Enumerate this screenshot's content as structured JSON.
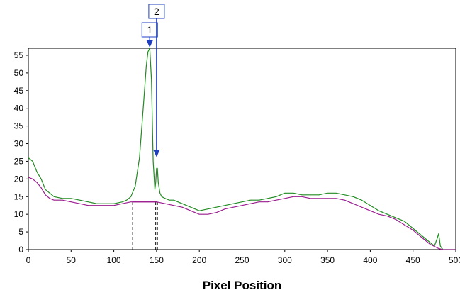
{
  "chart_data": {
    "type": "line",
    "title": "",
    "xlabel": "Pixel Position",
    "ylabel": "",
    "xlim": [
      0,
      500
    ],
    "ylim": [
      0,
      57
    ],
    "x_ticks": [
      0,
      50,
      100,
      150,
      200,
      250,
      300,
      350,
      400,
      450,
      500
    ],
    "y_ticks": [
      0,
      5,
      10,
      15,
      20,
      25,
      30,
      35,
      40,
      45,
      50,
      55
    ],
    "grid": false,
    "legend": "none",
    "series": [
      {
        "color": "#228B22",
        "x": [
          0,
          5,
          10,
          15,
          20,
          25,
          30,
          40,
          50,
          60,
          70,
          80,
          90,
          100,
          110,
          115,
          120,
          125,
          130,
          135,
          138,
          140,
          142,
          144,
          146,
          148,
          149,
          150,
          151,
          152,
          154,
          156,
          160,
          165,
          170,
          180,
          190,
          200,
          210,
          220,
          230,
          240,
          250,
          260,
          270,
          280,
          290,
          300,
          310,
          320,
          330,
          340,
          350,
          360,
          370,
          380,
          390,
          400,
          410,
          420,
          430,
          440,
          450,
          460,
          470,
          475,
          478,
          480,
          482,
          485,
          490,
          500
        ],
        "y": [
          26,
          25,
          22,
          20,
          17,
          16,
          15,
          14.5,
          14.5,
          14,
          13.5,
          13,
          13,
          13,
          13.5,
          14,
          15,
          18,
          26,
          42,
          52,
          56,
          57,
          48,
          25,
          17,
          19,
          23,
          23,
          19,
          16,
          15,
          14.5,
          14,
          14,
          13,
          12,
          11,
          11.5,
          12,
          12.5,
          13,
          13.5,
          14,
          14,
          14.5,
          15,
          16,
          16,
          15.5,
          15.5,
          15.5,
          16,
          16,
          15.5,
          15,
          14,
          12.5,
          11,
          10,
          9,
          8,
          6,
          4,
          2,
          1,
          3,
          4.5,
          1,
          0,
          0,
          0
        ]
      },
      {
        "color": "#9B1B8F",
        "x": [
          0,
          5,
          10,
          15,
          20,
          25,
          30,
          40,
          50,
          60,
          70,
          80,
          90,
          100,
          110,
          120,
          130,
          140,
          150,
          160,
          170,
          180,
          190,
          200,
          210,
          220,
          230,
          240,
          250,
          260,
          270,
          280,
          290,
          300,
          310,
          320,
          330,
          340,
          350,
          360,
          370,
          380,
          390,
          400,
          410,
          420,
          430,
          440,
          450,
          460,
          470,
          480,
          485,
          490,
          500
        ],
        "y": [
          20.5,
          20,
          19,
          17.5,
          15.5,
          14.5,
          14,
          14,
          13.5,
          13,
          12.5,
          12.5,
          12.5,
          12.5,
          13,
          13.5,
          13.5,
          13.5,
          13.5,
          13,
          12.5,
          12,
          11,
          10,
          10,
          10.5,
          11.5,
          12,
          12.5,
          13,
          13.5,
          13.5,
          14,
          14.5,
          15,
          15,
          14.5,
          14.5,
          14.5,
          14.5,
          14,
          13,
          12,
          11,
          10,
          9.5,
          8.5,
          7,
          5.5,
          3.5,
          1.5,
          0.3,
          0,
          0,
          0
        ]
      }
    ],
    "annotations": [
      {
        "label": "1",
        "x": 142,
        "y_tip": 57
      },
      {
        "label": "2",
        "x": 150,
        "y_tip": 26
      }
    ],
    "dashed_lines": [
      {
        "x": 122,
        "y_top": 13.5
      },
      {
        "x": 149,
        "y_top": 13.5
      },
      {
        "x": 151,
        "y_top": 13.5
      }
    ],
    "baseline_segment": {
      "x0": 122,
      "x1": 151,
      "y": 13.5
    }
  }
}
